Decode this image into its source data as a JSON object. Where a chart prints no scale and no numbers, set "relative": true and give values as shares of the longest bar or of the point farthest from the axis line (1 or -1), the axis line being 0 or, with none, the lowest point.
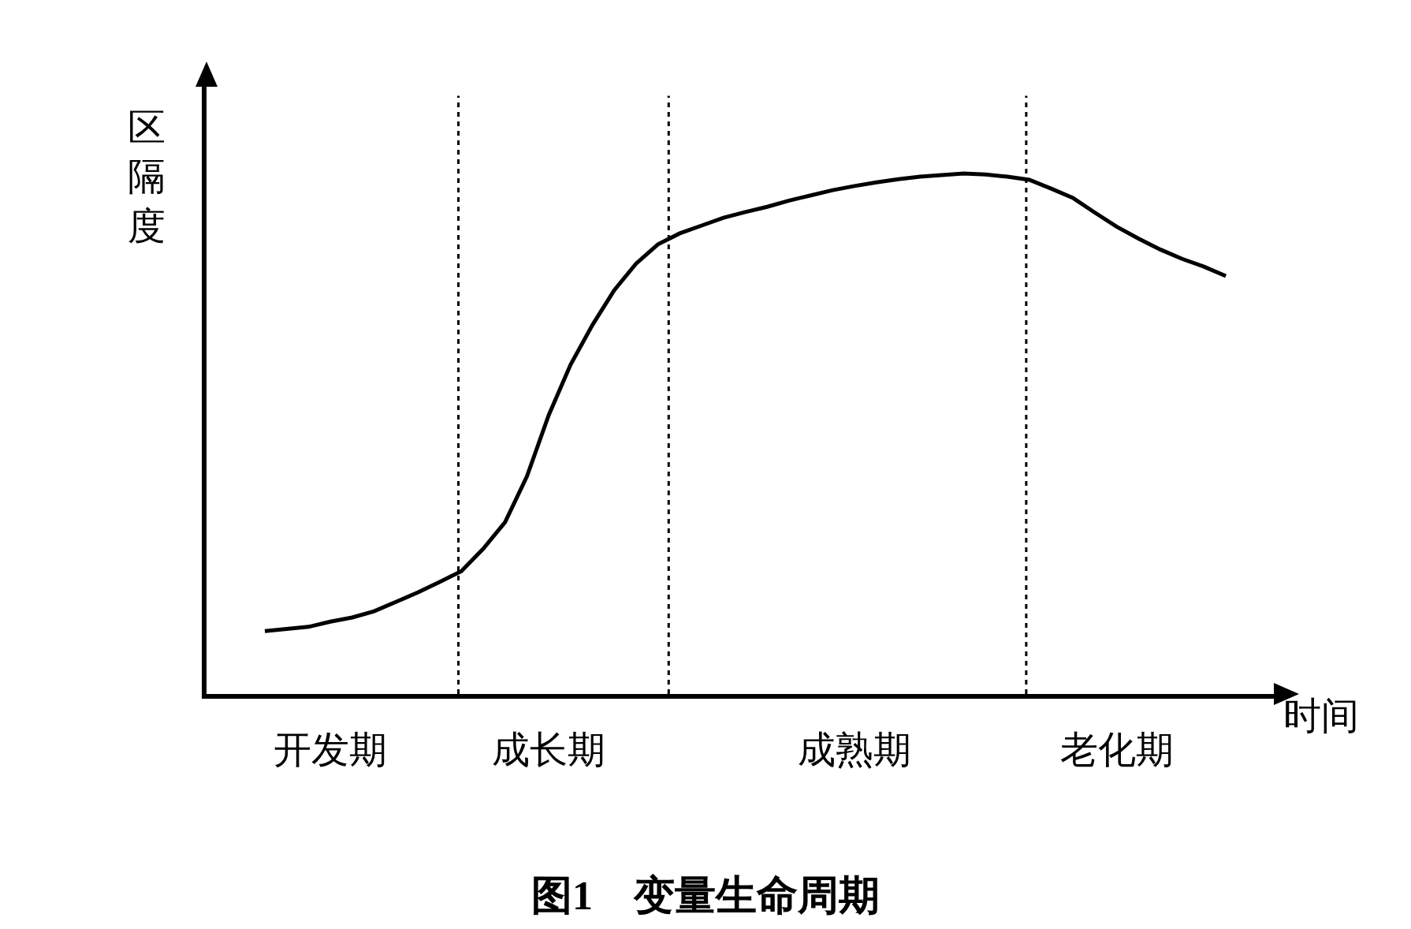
{
  "chart_data": {
    "type": "line",
    "title": "图1　变量生命周期",
    "xlabel": "时间",
    "ylabel": "区隔度",
    "relative": true,
    "color": "#000000",
    "line_style": "solid",
    "categories": [
      null,
      null,
      null,
      "开发期",
      null,
      null,
      null,
      null,
      null,
      null,
      null,
      null,
      null,
      "成长期",
      null,
      null,
      null,
      null,
      null,
      null,
      null,
      null,
      null,
      null,
      null,
      null,
      null,
      "成熟期",
      null,
      null,
      null,
      null,
      null,
      null,
      null,
      null,
      null,
      null,
      null,
      "老化期",
      null,
      null,
      null,
      null,
      null
    ],
    "values": [
      0.121,
      0.125,
      0.129,
      0.139,
      0.147,
      0.159,
      0.177,
      0.195,
      0.215,
      0.236,
      0.279,
      0.33,
      0.418,
      0.536,
      0.633,
      0.709,
      0.776,
      0.827,
      0.864,
      0.885,
      0.9,
      0.915,
      0.926,
      0.936,
      0.948,
      0.958,
      0.968,
      0.976,
      0.983,
      0.989,
      0.994,
      0.997,
      1,
      0.998,
      0.994,
      0.988,
      0.971,
      0.953,
      0.925,
      0.898,
      0.875,
      0.854,
      0.836,
      0.821,
      0.803
    ]
  }
}
